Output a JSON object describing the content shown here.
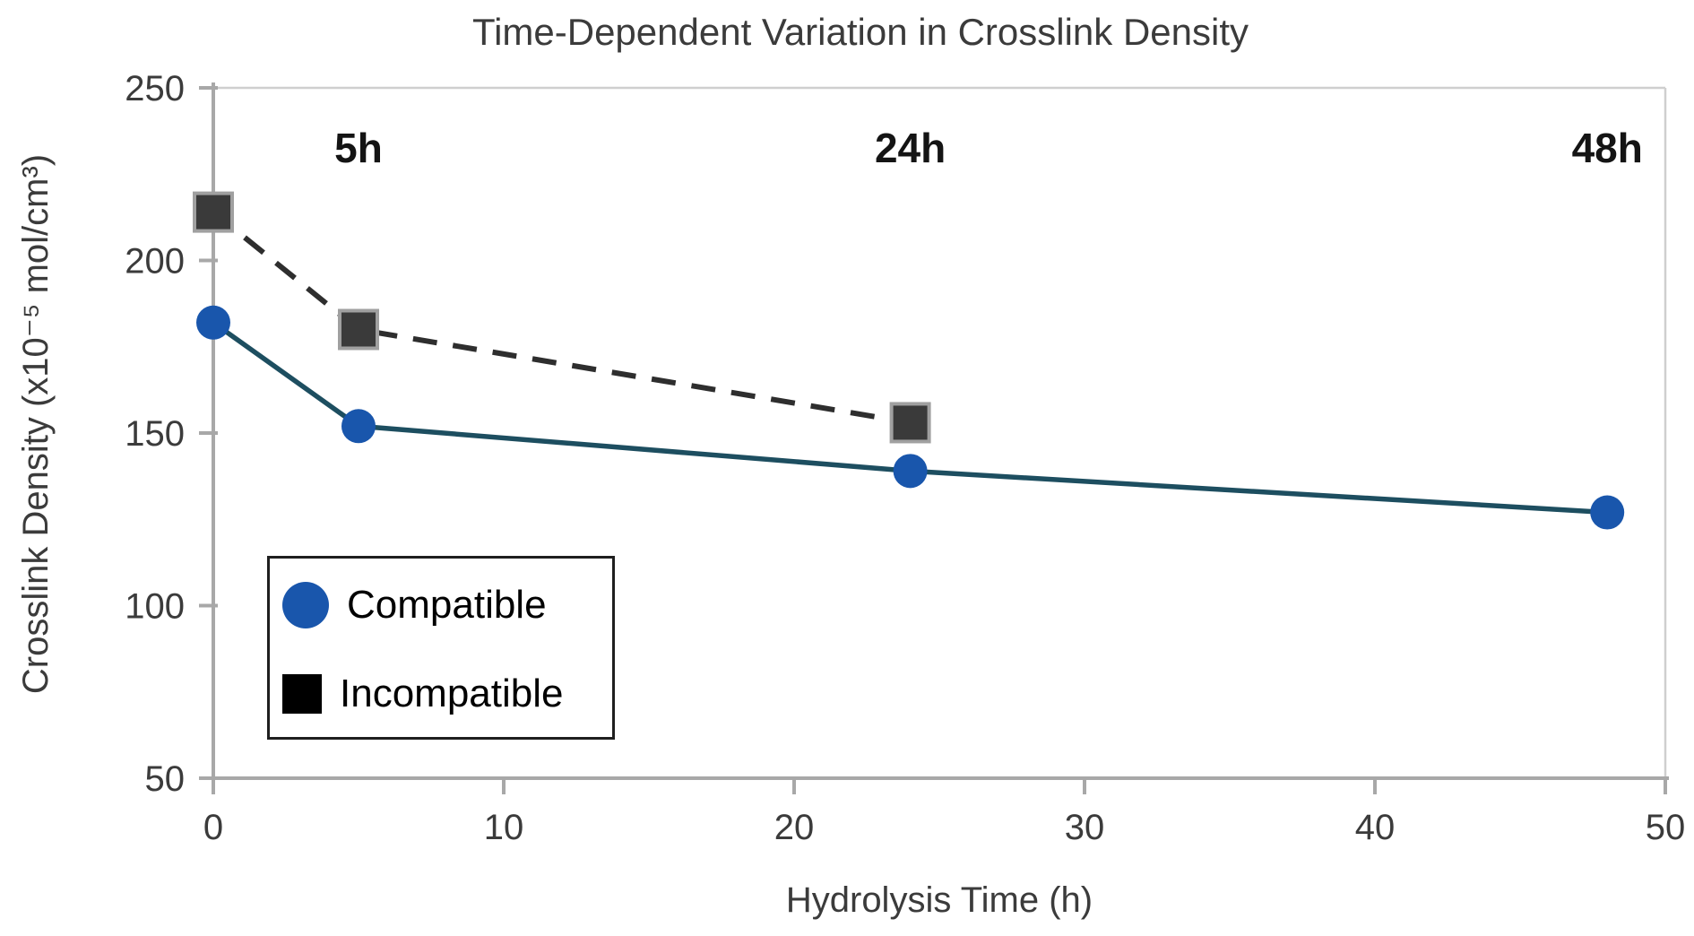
{
  "title": "Time-Dependent Variation in Crosslink Density",
  "chart_data": {
    "type": "line",
    "title": "Time-Dependent Variation in Crosslink Density",
    "xlabel": "Hydrolysis Time (h)",
    "ylabel": "Crosslink Density (x10⁻⁵ mol/cm³)",
    "xlim": [
      0,
      50
    ],
    "ylim": [
      50,
      250
    ],
    "x_ticks": [
      "0",
      "10",
      "20",
      "30",
      "40",
      "50"
    ],
    "x_tick_values": [
      0,
      10,
      20,
      30,
      40,
      50
    ],
    "y_ticks": [
      "50",
      "100",
      "150",
      "200",
      "250"
    ],
    "y_tick_values": [
      50,
      100,
      150,
      200,
      250
    ],
    "grid": false,
    "legend_position": "lower-left",
    "series": [
      {
        "name": "Compatible",
        "x": [
          0,
          5,
          24,
          48
        ],
        "values": [
          182,
          152,
          139,
          127
        ],
        "marker": "circle",
        "marker_color": "#1956ac",
        "line_color": "#1d4e60",
        "line_style": "solid"
      },
      {
        "name": "Incompatible",
        "x": [
          0,
          5,
          24
        ],
        "values": [
          214,
          180,
          153
        ],
        "marker": "square",
        "marker_color": "#3a3a3a",
        "marker_border_color": "#a0a0a0",
        "legend_marker_color": "#000000",
        "line_color": "#2e2e2e",
        "line_style": "dashed"
      }
    ],
    "annotations": [
      {
        "label": "5h",
        "x": 5
      },
      {
        "label": "24h",
        "x": 24
      },
      {
        "label": "48h",
        "x": 48
      }
    ]
  },
  "colors": {
    "axis": "#a8a8a8",
    "plot_border": "#cfcfcf",
    "tick_label": "#3b3b3b",
    "title_text": "#3b3b3b",
    "annotation_text": "#141414",
    "legend_border": "#1f1f1f",
    "background": "#ffffff"
  }
}
